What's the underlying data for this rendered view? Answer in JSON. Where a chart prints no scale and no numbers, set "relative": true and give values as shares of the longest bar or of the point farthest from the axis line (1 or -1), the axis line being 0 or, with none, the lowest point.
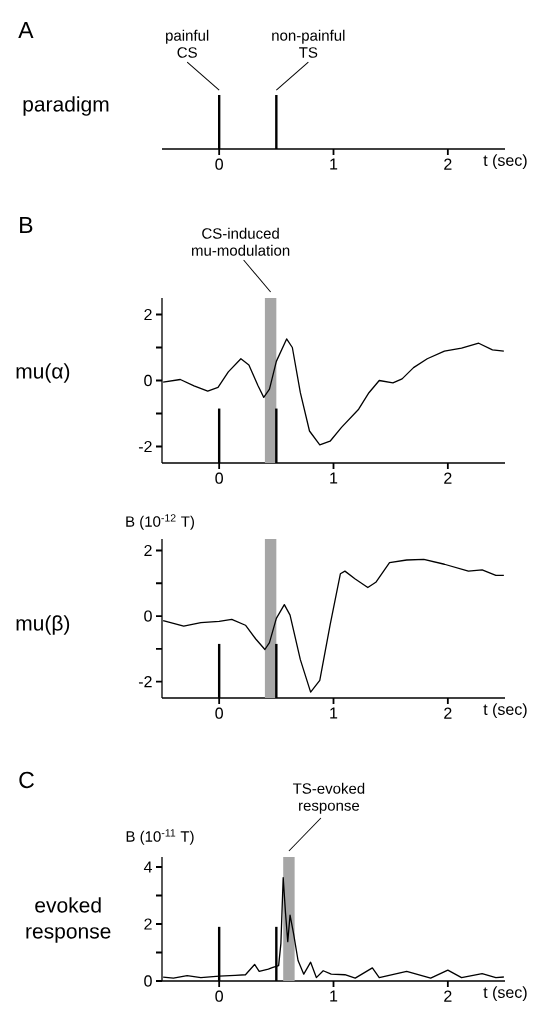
{
  "chart_data": [
    {
      "type": "bar",
      "title": "A",
      "subtitle": "paradigm",
      "xlabel": "t (sec)",
      "relative": true,
      "tick_labels": "x",
      "xlim": [
        -0.5,
        2.5
      ],
      "xticks": [
        0,
        1,
        2
      ],
      "x": [
        0,
        0.5
      ],
      "values": [
        1,
        1
      ],
      "color": "#000000",
      "annotations": [
        {
          "text": "painful CS",
          "x": 0,
          "y": 1
        },
        {
          "text": "non-painful TS",
          "x": 0.5,
          "y": 1
        }
      ]
    },
    {
      "type": "line",
      "title": "B",
      "subtitle": "mu(α)",
      "xlim": [
        -0.5,
        2.5
      ],
      "ylim": [
        -2.5,
        2.5
      ],
      "xticks": [
        0,
        1,
        2
      ],
      "yticks": [
        -2,
        {
          "value": -1,
          "label": null
        },
        0,
        {
          "value": 1,
          "label": null
        },
        2
      ],
      "bands": [
        {
          "axis": "x",
          "from": 0.4,
          "to": 0.5,
          "color": "#a6a6a6",
          "label": "CS-induced mu-modulation"
        }
      ],
      "series": [
        {
          "color": "#000000",
          "x": [
            -0.49,
            -0.34,
            -0.22,
            -0.1,
            -0.01,
            0.08,
            0.19,
            0.26,
            0.34,
            0.39,
            0.44,
            0.5,
            0.59,
            0.64,
            0.71,
            0.79,
            0.88,
            0.97,
            1.07,
            1.22,
            1.31,
            1.4,
            1.52,
            1.6,
            1.7,
            1.82,
            1.97,
            2.12,
            2.27,
            2.39,
            2.49
          ],
          "values": [
            -0.05,
            0.03,
            -0.16,
            -0.32,
            -0.21,
            0.26,
            0.66,
            0.47,
            -0.16,
            -0.51,
            -0.26,
            0.58,
            1.26,
            1.0,
            -0.37,
            -1.53,
            -1.95,
            -1.84,
            -1.42,
            -0.87,
            -0.37,
            0.0,
            -0.07,
            0.05,
            0.39,
            0.66,
            0.89,
            0.98,
            1.13,
            0.93,
            0.89
          ]
        },
        {
          "type": "bar",
          "color": "#000000",
          "x": [
            0,
            0.5
          ],
          "base": [
            -2.5,
            -2.5
          ],
          "values": [
            1.65,
            1.65
          ]
        }
      ]
    },
    {
      "type": "line",
      "subtitle": "mu(β)",
      "ylabel": "B (10$^{-12}$ T)",
      "xlabel": "t (sec)",
      "xlim": [
        -0.5,
        2.5
      ],
      "ylim": [
        -2.5,
        2.35
      ],
      "xticks": [
        0,
        1,
        2
      ],
      "yticks": [
        -2,
        {
          "value": -1,
          "label": null
        },
        0,
        {
          "value": 1,
          "label": null
        },
        2
      ],
      "bands": [
        {
          "axis": "x",
          "from": 0.4,
          "to": 0.5,
          "color": "#a6a6a6"
        }
      ],
      "series": [
        {
          "color": "#000000",
          "x": [
            -0.49,
            -0.31,
            -0.16,
            0,
            0.11,
            0.23,
            0.32,
            0.4,
            0.44,
            0.5,
            0.57,
            0.62,
            0.71,
            0.8,
            0.88,
            0.97,
            1.06,
            1.1,
            1.19,
            1.3,
            1.37,
            1.49,
            1.64,
            1.79,
            1.97,
            2.18,
            2.3,
            2.42,
            2.49
          ],
          "values": [
            -0.14,
            -0.31,
            -0.2,
            -0.16,
            -0.1,
            -0.28,
            -0.7,
            -1.02,
            -0.81,
            -0.07,
            0.35,
            0.03,
            -1.33,
            -2.32,
            -1.96,
            -0.28,
            1.29,
            1.37,
            1.13,
            0.87,
            1.03,
            1.63,
            1.71,
            1.73,
            1.58,
            1.37,
            1.41,
            1.24,
            1.24
          ]
        },
        {
          "type": "bar",
          "color": "#000000",
          "x": [
            0,
            0.5
          ],
          "base": [
            -2.5,
            -2.5
          ],
          "values": [
            1.65,
            1.65
          ]
        }
      ]
    },
    {
      "type": "line",
      "title": "C",
      "subtitle": "evoked response",
      "ylabel": "B (10$^{-11}$ T)",
      "xlabel": "t (sec)",
      "xlim": [
        -0.5,
        2.5
      ],
      "ylim": [
        0,
        4.35
      ],
      "xticks": [
        0,
        1,
        2
      ],
      "yticks": [
        0,
        {
          "value": 1,
          "label": null
        },
        2,
        {
          "value": 3,
          "label": null
        },
        4
      ],
      "bands": [
        {
          "axis": "x",
          "from": 0.56,
          "to": 0.66,
          "color": "#a6a6a6",
          "label": "TS-evoked response"
        }
      ],
      "series": [
        {
          "color": "#000000",
          "x": [
            -0.49,
            -0.4,
            -0.28,
            -0.16,
            0,
            0.14,
            0.23,
            0.31,
            0.35,
            0.43,
            0.47,
            0.52,
            0.54,
            0.56,
            0.58,
            0.6,
            0.62,
            0.65,
            0.69,
            0.74,
            0.8,
            0.85,
            0.91,
            0.98,
            1.1,
            1.19,
            1.34,
            1.4,
            1.64,
            1.85,
            2.0,
            2.12,
            2.3,
            2.42,
            2.49
          ],
          "values": [
            0.14,
            0.1,
            0.19,
            0.12,
            0.17,
            0.2,
            0.22,
            0.58,
            0.34,
            0.42,
            0.48,
            0.54,
            1.32,
            3.63,
            2.4,
            1.38,
            2.31,
            1.68,
            0.72,
            0.24,
            0.66,
            0.12,
            0.36,
            0.24,
            0.22,
            0.1,
            0.46,
            0.12,
            0.34,
            0.1,
            0.38,
            0.12,
            0.26,
            0.12,
            0.14
          ]
        },
        {
          "type": "bar",
          "color": "#000000",
          "x": [
            0,
            0.5
          ],
          "base": [
            0,
            0
          ],
          "values": [
            1.9,
            1.9
          ]
        }
      ]
    }
  ]
}
